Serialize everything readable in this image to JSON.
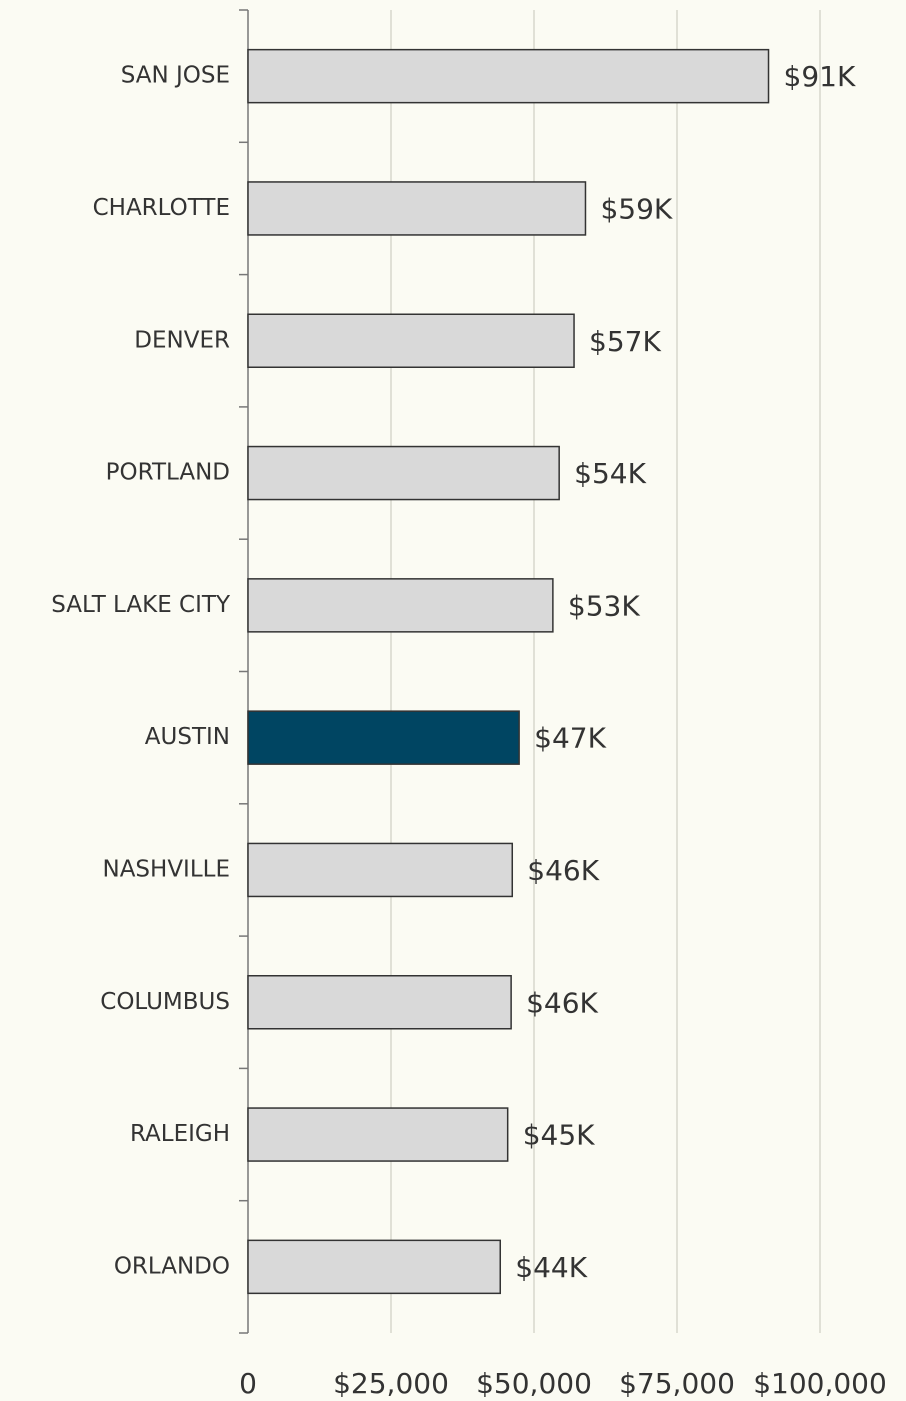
{
  "chart_data": {
    "type": "barh",
    "categories": [
      "SAN JOSE",
      "CHARLOTTE",
      "DENVER",
      "PORTLAND",
      "SALT LAKE CITY",
      "AUSTIN",
      "NASHVILLE",
      "COLUMBUS",
      "RALEIGH",
      "ORLANDO"
    ],
    "values": [
      91000,
      59000,
      57000,
      54400,
      53300,
      47400,
      46200,
      46000,
      45400,
      44100
    ],
    "value_labels": [
      "$91K",
      "$59K",
      "$57K",
      "$54K",
      "$53K",
      "$47K",
      "$46K",
      "$46K",
      "$45K",
      "$44K"
    ],
    "colors": [
      "#d9d9d9",
      "#d9d9d9",
      "#d9d9d9",
      "#d9d9d9",
      "#d9d9d9",
      "#004562",
      "#d9d9d9",
      "#d9d9d9",
      "#d9d9d9",
      "#d9d9d9"
    ],
    "xlim": [
      0,
      100000
    ],
    "xticks": [
      0,
      {
        "value": 25000,
        "label": "$25,000"
      },
      {
        "value": 50000,
        "label": "$50,000"
      },
      {
        "value": 75000,
        "label": "$75,000"
      },
      {
        "value": 100000,
        "label": "$100,000"
      }
    ],
    "grid": true
  }
}
